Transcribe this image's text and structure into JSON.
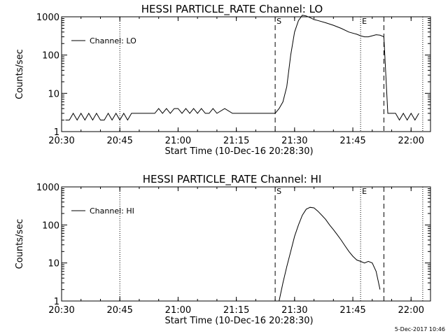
{
  "chart_data": [
    {
      "type": "line",
      "title": "HESSI PARTICLE_RATE Channel: LO",
      "xlabel": "Start Time (10-Dec-16 20:28:30)",
      "ylabel": "Counts/sec",
      "yscale": "log",
      "ylim": [
        1,
        1000
      ],
      "xlim_minutes_after_2030": [
        0,
        95
      ],
      "x_tick_labels": [
        "20:30",
        "20:45",
        "21:00",
        "21:15",
        "21:30",
        "21:45",
        "22:00"
      ],
      "y_tick_labels": [
        "1",
        "10",
        "100",
        "1000"
      ],
      "legend": "Channel: LO",
      "legend_position": "top-left",
      "markers": [
        {
          "label": "S",
          "style": "dashed",
          "time": "21:25"
        },
        {
          "label": "E",
          "style": "dotted",
          "time": "21:47"
        },
        {
          "label": "",
          "style": "dashed",
          "time": "21:53"
        },
        {
          "label": "",
          "style": "dotted",
          "time": "20:45"
        },
        {
          "label": "",
          "style": "dotted",
          "time": "22:03"
        }
      ],
      "series": [
        {
          "x": [
            "20:31",
            "20:32",
            "20:33",
            "20:34",
            "20:35",
            "20:36",
            "20:37",
            "20:38",
            "20:39",
            "20:40",
            "20:41",
            "20:42",
            "20:43",
            "20:44",
            "20:45",
            "20:46",
            "20:47",
            "20:48",
            "20:49",
            "20:50",
            "20:52",
            "20:54",
            "20:55",
            "20:56",
            "20:57",
            "20:58",
            "20:59",
            "21:00",
            "21:01",
            "21:02",
            "21:03",
            "21:04",
            "21:05",
            "21:06",
            "21:07",
            "21:08",
            "21:09",
            "21:10",
            "21:12",
            "21:14",
            "21:16",
            "21:18",
            "21:20",
            "21:22",
            "21:25",
            "21:26",
            "21:27",
            "21:28",
            "21:29",
            "21:30",
            "21:31",
            "21:32",
            "21:33",
            "21:34",
            "21:35",
            "21:36",
            "21:38",
            "21:40",
            "21:42",
            "21:44",
            "21:46",
            "21:47",
            "21:48",
            "21:49",
            "21:50",
            "21:51",
            "21:52",
            "21:53",
            "21:54",
            "21:55",
            "21:56",
            "21:57",
            "21:58",
            "21:59",
            "22:00",
            "22:01",
            "22:02"
          ],
          "y": [
            2,
            2,
            3,
            2,
            3,
            2,
            3,
            2,
            3,
            2,
            2,
            3,
            2,
            3,
            2,
            3,
            2,
            3,
            3,
            3,
            3,
            3,
            4,
            3,
            4,
            3,
            4,
            4,
            3,
            4,
            3,
            4,
            3,
            4,
            3,
            3,
            4,
            3,
            4,
            3,
            3,
            3,
            3,
            3,
            3,
            4,
            6,
            15,
            100,
            400,
            800,
            1100,
            1050,
            950,
            850,
            800,
            700,
            600,
            500,
            400,
            350,
            320,
            300,
            300,
            320,
            340,
            330,
            300,
            3,
            3,
            3,
            2,
            3,
            2,
            3,
            2,
            3
          ]
        }
      ]
    },
    {
      "type": "line",
      "title": "HESSI PARTICLE_RATE Channel: HI",
      "xlabel": "Start Time (10-Dec-16 20:28:30)",
      "ylabel": "Counts/sec",
      "yscale": "log",
      "ylim": [
        1,
        1000
      ],
      "xlim_minutes_after_2030": [
        0,
        95
      ],
      "x_tick_labels": [
        "20:30",
        "20:45",
        "21:00",
        "21:15",
        "21:30",
        "21:45",
        "22:00"
      ],
      "y_tick_labels": [
        "1",
        "10",
        "100",
        "1000"
      ],
      "legend": "Channel: HI",
      "legend_position": "top-left",
      "markers": [
        {
          "label": "S",
          "style": "dashed",
          "time": "21:25"
        },
        {
          "label": "E",
          "style": "dotted",
          "time": "21:47"
        },
        {
          "label": "",
          "style": "dashed",
          "time": "21:53"
        },
        {
          "label": "",
          "style": "dotted",
          "time": "20:45"
        },
        {
          "label": "",
          "style": "dotted",
          "time": "22:03"
        }
      ],
      "series": [
        {
          "x": [
            "21:26",
            "21:27",
            "21:28",
            "21:29",
            "21:30",
            "21:31",
            "21:32",
            "21:33",
            "21:34",
            "21:35",
            "21:36",
            "21:37",
            "21:38",
            "21:39",
            "21:40",
            "21:41",
            "21:42",
            "21:43",
            "21:44",
            "21:45",
            "21:46",
            "21:47",
            "21:48",
            "21:49",
            "21:50",
            "21:51",
            "21:52"
          ],
          "y": [
            1,
            3,
            8,
            20,
            50,
            100,
            180,
            260,
            290,
            280,
            230,
            180,
            140,
            100,
            75,
            55,
            40,
            28,
            20,
            15,
            12,
            11,
            10,
            11,
            10,
            6,
            2
          ]
        }
      ]
    }
  ],
  "footer": {
    "stamp": "5-Dec-2017 10:46"
  }
}
